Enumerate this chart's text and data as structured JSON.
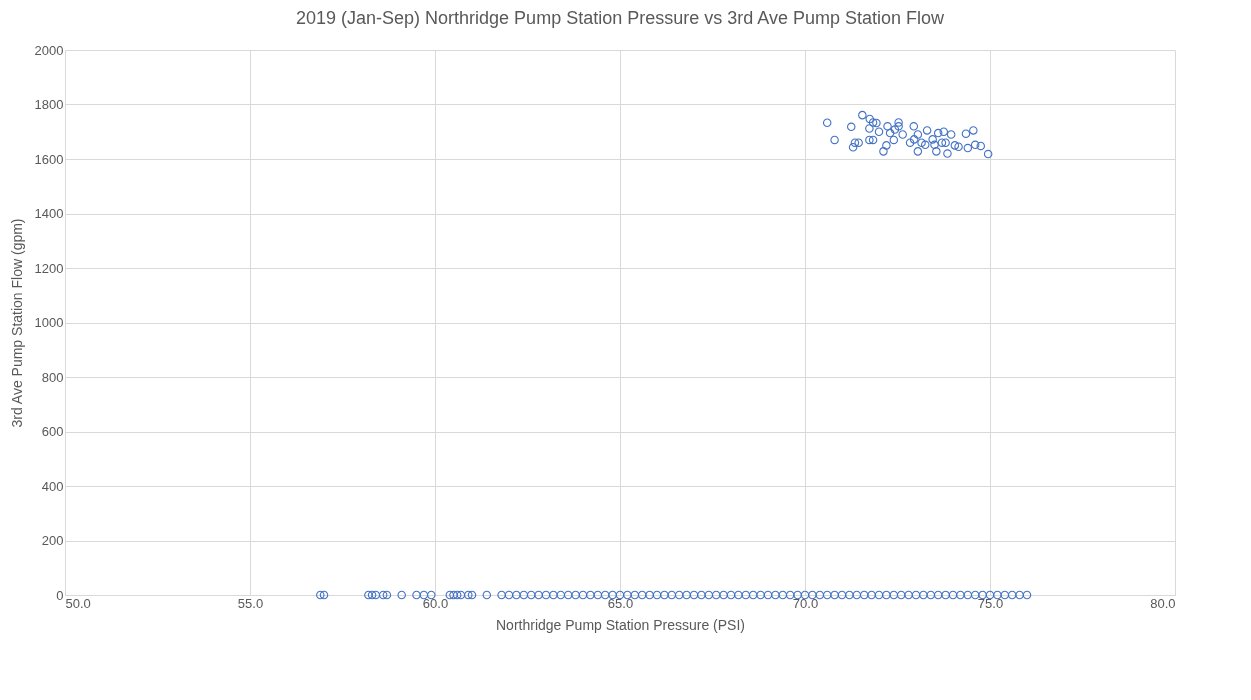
{
  "chart_data": {
    "type": "scatter",
    "title": "2019 (Jan-Sep) Northridge Pump Station Pressure vs 3rd Ave Pump Station Flow",
    "xlabel": "Northridge Pump Station Pressure (PSI)",
    "ylabel": "3rd Ave Pump Station Flow (gpm)",
    "xlim": [
      50,
      80
    ],
    "xticks": [
      {
        "value": 50,
        "label": "50.0"
      },
      {
        "value": 55,
        "label": "55.0"
      },
      {
        "value": 60,
        "label": "60.0"
      },
      {
        "value": 65,
        "label": "65.0"
      },
      {
        "value": 70,
        "label": "70.0"
      },
      {
        "value": 75,
        "label": "75.0"
      },
      {
        "value": 80,
        "label": "80.0"
      }
    ],
    "ylim": [
      0,
      2000
    ],
    "yticks": [
      0,
      200,
      400,
      600,
      800,
      1000,
      1200,
      1400,
      1600,
      1800,
      2000
    ],
    "grid": true,
    "marker": "circle",
    "series": [
      {
        "color": "#4472c4",
        "x": [
          56.9,
          57.0,
          58.2,
          58.3,
          58.4,
          58.6,
          58.7,
          59.1,
          59.5,
          59.7,
          59.9,
          60.4,
          60.5,
          60.6,
          60.7,
          60.9,
          61.0,
          61.4,
          61.8,
          62.0,
          62.2,
          62.4,
          62.6,
          62.8,
          63.0,
          63.2,
          63.4,
          63.6,
          63.8,
          64.0,
          64.2,
          64.4,
          64.6,
          64.8,
          65.0,
          65.2,
          65.4,
          65.6,
          65.8,
          66.0,
          66.2,
          66.4,
          66.6,
          66.8,
          67.0,
          67.2,
          67.4,
          67.6,
          67.8,
          68.0,
          68.2,
          68.4,
          68.6,
          68.8,
          69.0,
          69.2,
          69.4,
          69.6,
          69.8,
          70.0,
          70.2,
          70.4,
          70.6,
          70.8,
          71.0,
          71.2,
          71.4,
          71.6,
          71.8,
          72.0,
          72.2,
          72.4,
          72.6,
          72.8,
          73.0,
          73.2,
          73.4,
          73.6,
          73.8,
          74.0,
          74.2,
          74.4,
          74.6,
          74.8,
          75.0,
          75.2,
          75.4,
          75.6,
          75.8,
          76.0
        ],
        "values": [
          0,
          0,
          0,
          0,
          0,
          0,
          0,
          0,
          0,
          0,
          0,
          0,
          0,
          0,
          0,
          0,
          0,
          0,
          0,
          0,
          0,
          0,
          0,
          0,
          0,
          0,
          0,
          0,
          0,
          0,
          0,
          0,
          0,
          0,
          0,
          0,
          0,
          0,
          0,
          0,
          0,
          0,
          0,
          0,
          0,
          0,
          0,
          0,
          0,
          0,
          0,
          0,
          0,
          0,
          0,
          0,
          0,
          0,
          0,
          0,
          0,
          0,
          0,
          0,
          0,
          0,
          0,
          0,
          0,
          0,
          0,
          0,
          0,
          0,
          0,
          0,
          0,
          0,
          0,
          0,
          0,
          0,
          0,
          0,
          0,
          0,
          0,
          0,
          0,
          0
        ]
      },
      {
        "color": "#4472c4",
        "x": [
          70.6,
          70.8,
          71.25,
          71.35,
          71.3,
          71.45,
          71.55,
          71.75,
          71.74,
          71.74,
          71.84,
          71.93,
          71.84,
          72.0,
          72.12,
          72.23,
          72.2,
          72.43,
          72.53,
          72.53,
          72.64,
          72.4,
          72.3,
          72.94,
          72.84,
          73.05,
          73.05,
          73.15,
          73.3,
          73.45,
          73.55,
          73.6,
          73.75,
          73.8,
          73.85,
          73.95,
          74.05,
          74.15,
          74.35,
          74.55,
          74.4,
          74.6,
          74.75,
          74.95,
          73.7,
          73.5,
          73.25,
          72.95
        ],
        "values": [
          1733,
          1670,
          1718,
          1660,
          1643,
          1660,
          1761,
          1747,
          1712,
          1670,
          1734,
          1732,
          1670,
          1700,
          1628,
          1720,
          1650,
          1708,
          1734,
          1720,
          1690,
          1670,
          1695,
          1720,
          1660,
          1690,
          1628,
          1660,
          1705,
          1672,
          1628,
          1695,
          1700,
          1660,
          1620,
          1690,
          1650,
          1645,
          1693,
          1705,
          1640,
          1652,
          1648,
          1618,
          1660,
          1652,
          1652,
          1672
        ]
      }
    ]
  }
}
